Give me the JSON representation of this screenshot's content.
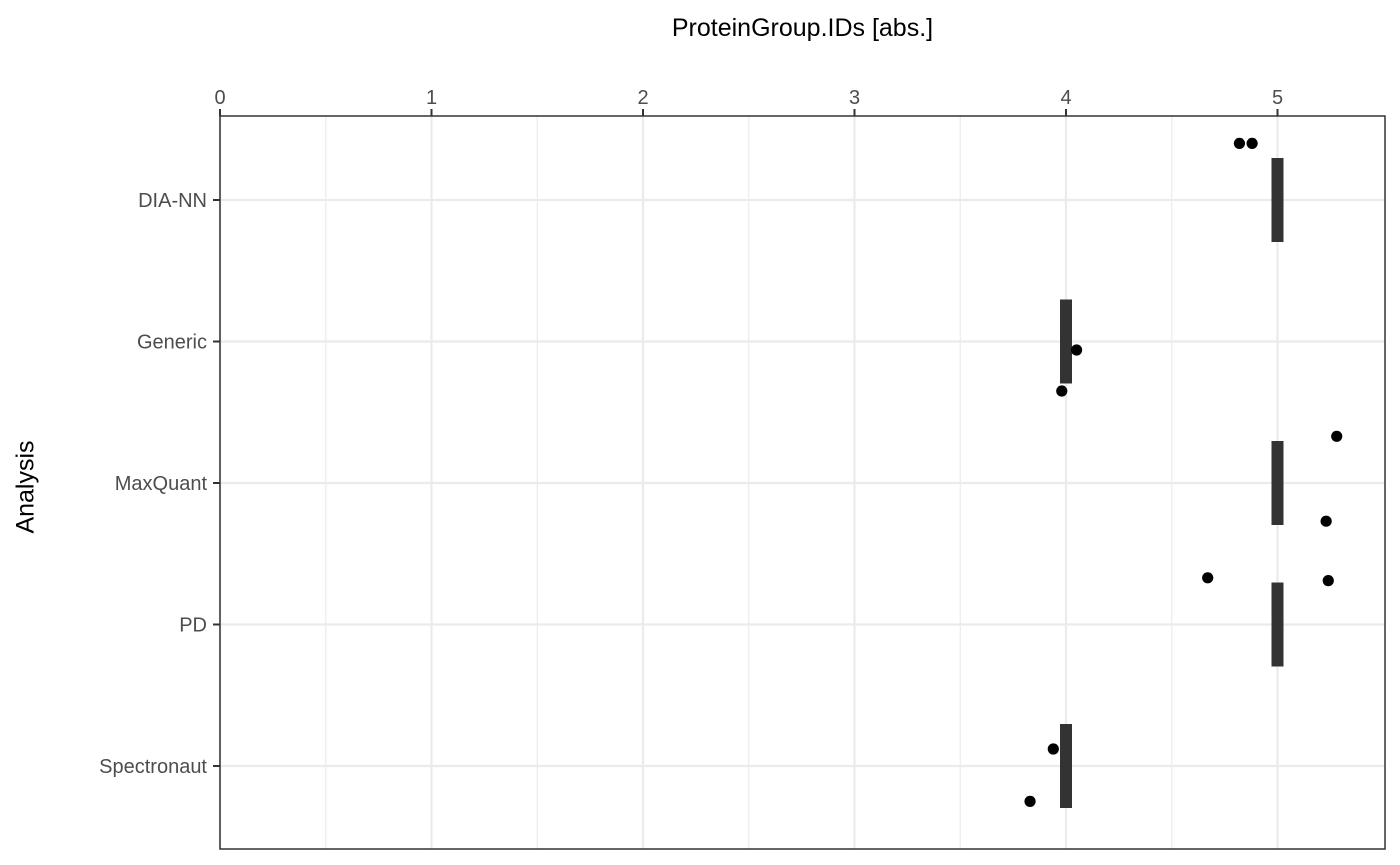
{
  "chart_data": {
    "type": "box-with-points",
    "orientation": "horizontal",
    "xlabel": "ProteinGroup.IDs  [abs.]",
    "ylabel": "Analysis",
    "xaxis_position": "top",
    "xlim": [
      0,
      5.5
    ],
    "xticks": [
      0,
      1,
      2,
      3,
      4,
      5
    ],
    "grid": true,
    "categories": [
      "DIA-NN",
      "Generic",
      "MaxQuant",
      "PD",
      "Spectronaut"
    ],
    "medians": [
      5,
      4,
      5,
      5,
      4
    ],
    "points": [
      {
        "category": "DIA-NN",
        "value": 4.82,
        "jitter": -0.4
      },
      {
        "category": "DIA-NN",
        "value": 4.88,
        "jitter": -0.4
      },
      {
        "category": "Generic",
        "value": 4.05,
        "jitter": 0.06
      },
      {
        "category": "Generic",
        "value": 3.98,
        "jitter": 0.35
      },
      {
        "category": "MaxQuant",
        "value": 5.28,
        "jitter": -0.33
      },
      {
        "category": "MaxQuant",
        "value": 5.23,
        "jitter": 0.27
      },
      {
        "category": "PD",
        "value": 4.67,
        "jitter": -0.33
      },
      {
        "category": "PD",
        "value": 5.24,
        "jitter": -0.31
      },
      {
        "category": "Spectronaut",
        "value": 3.94,
        "jitter": -0.12
      },
      {
        "category": "Spectronaut",
        "value": 3.83,
        "jitter": 0.25
      }
    ],
    "colors": {
      "box": "#333333",
      "point": "#000000",
      "grid": "#ebebeb",
      "panel_border": "#333333"
    }
  }
}
